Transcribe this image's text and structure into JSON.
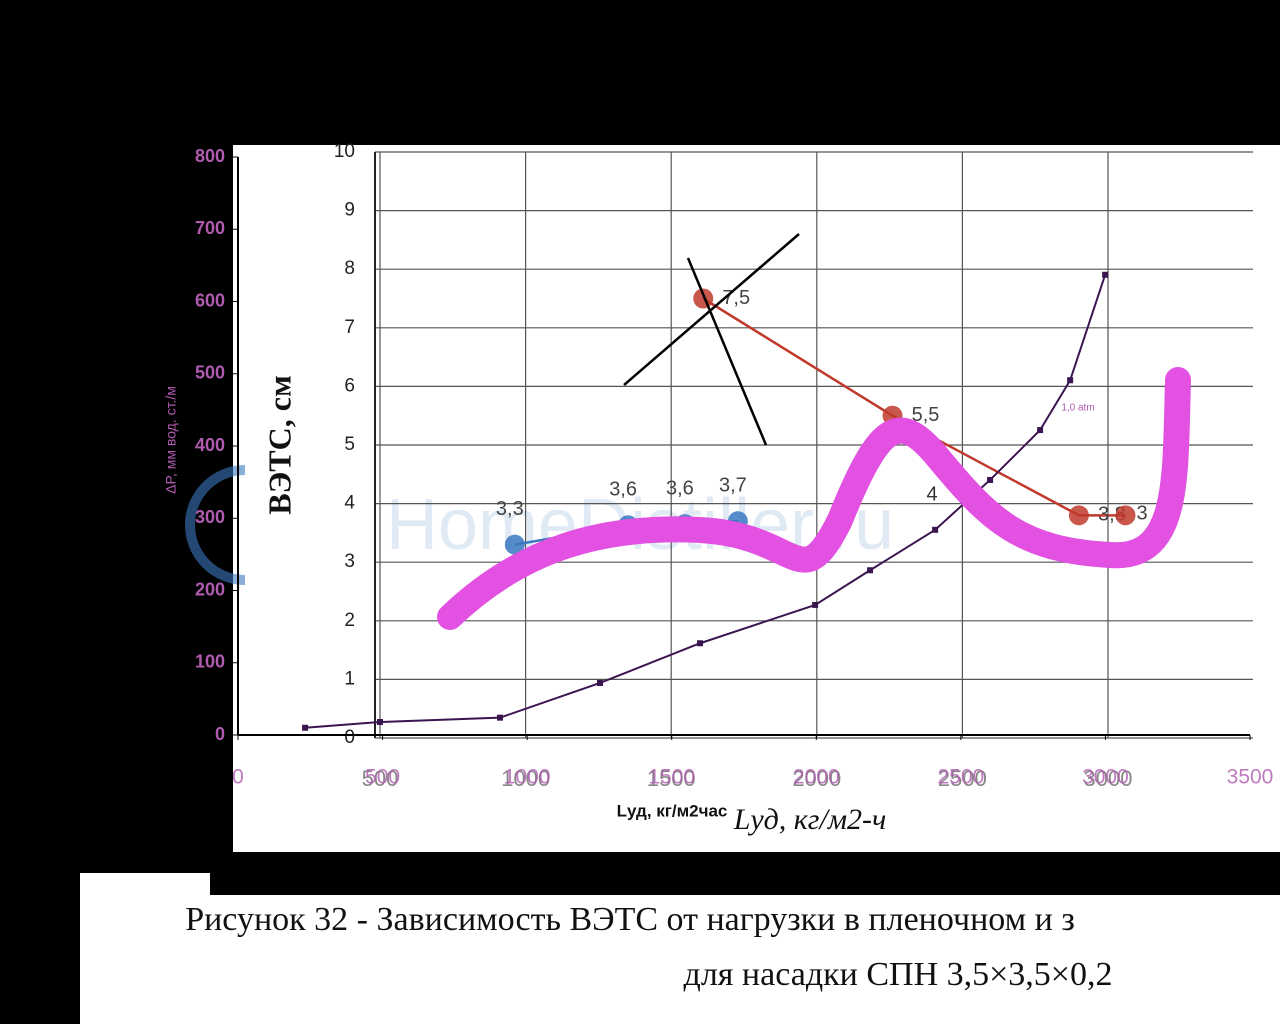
{
  "chart_data": [
    {
      "type": "line",
      "y_label": "ВЭТС, см",
      "x_label": "Lуд, кг/м2-ч",
      "xlim": [
        500,
        3500
      ],
      "ylim": [
        0,
        10
      ],
      "xticks": [
        500,
        1000,
        1500,
        2000,
        2500,
        3000
      ],
      "yticks": [
        0,
        1,
        2,
        3,
        4,
        5,
        6,
        7,
        8,
        9,
        10
      ],
      "grid": true,
      "series": [
        {
          "color": "#c0392b",
          "x": [
            1610,
            2260,
            2900,
            3060
          ],
          "values": [
            7.5,
            5.5,
            3.8,
            3.8
          ],
          "value_labels": [
            "7,5",
            "5,5",
            "3,8",
            null
          ]
        },
        {
          "color": "#3a78c2",
          "x": [
            963,
            1352,
            1547,
            1729
          ],
          "values": [
            3.3,
            3.63,
            3.65,
            3.7
          ],
          "value_labels": [
            "3,3",
            "3,6",
            "3,6",
            "3,7"
          ]
        }
      ],
      "annotations": [
        "4",
        "3"
      ]
    },
    {
      "type": "line",
      "y_label": "ΔP, мм вод. ст./м",
      "x_label": "Lуд, кг/м2час",
      "xlim": [
        0,
        3500
      ],
      "ylim": [
        0,
        800
      ],
      "xticks": [
        0,
        500,
        1000,
        1500,
        2000,
        2500,
        3000,
        3500
      ],
      "yticks": [
        0,
        100,
        200,
        300,
        400,
        500,
        600,
        700,
        800
      ],
      "series": [
        {
          "color": "#3a1550",
          "x": [
            232,
            491,
            906,
            1252,
            1598,
            1996,
            2186,
            2411,
            2601,
            2774,
            2878,
            2999
          ],
          "values": [
            10,
            18,
            24,
            72,
            127,
            180,
            228,
            284,
            353,
            422,
            491,
            637
          ]
        }
      ],
      "annotations": [
        "1,0 atm"
      ]
    },
    {
      "type": "caption",
      "watermark": "HomeDistiller.ru",
      "lines": [
        "Рисунок 32 - Зависимость ВЭТС от нагрузки в пленочном и з",
        "для насадки СПН 3,5×3,5×0,2"
      ]
    }
  ]
}
